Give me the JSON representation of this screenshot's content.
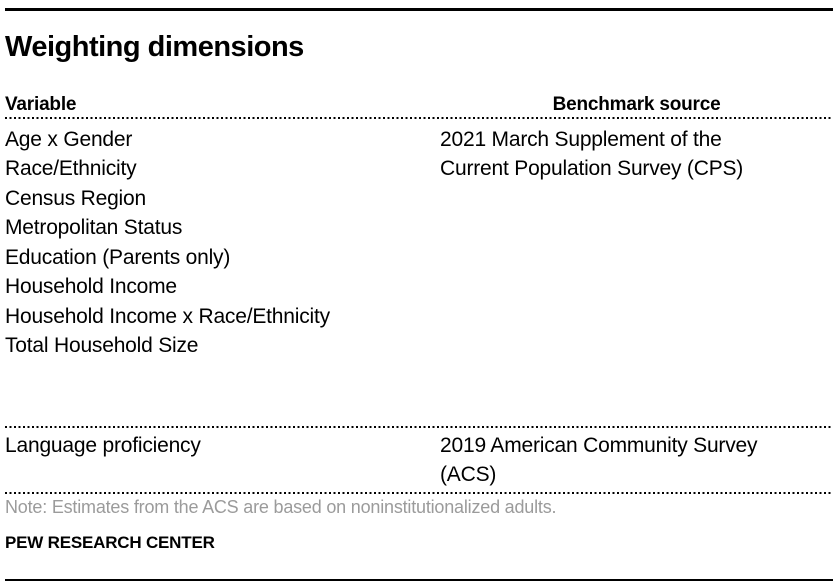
{
  "chart_data": {
    "type": "table",
    "title": "Weighting dimensions",
    "columns": [
      "Variable",
      "Benchmark source"
    ],
    "groups": [
      {
        "variables": [
          "Age x Gender",
          "Race/Ethnicity",
          "Census Region",
          "Metropolitan Status",
          "Education (Parents only)",
          "Household Income",
          "Household Income x Race/Ethnicity",
          "Total Household Size"
        ],
        "benchmark_source": "2021 March Supplement of the Current Population Survey (CPS)"
      },
      {
        "variables": [
          "Language proficiency"
        ],
        "benchmark_source": "2019 American Community Survey (ACS)"
      }
    ],
    "note": "Note: Estimates from the ACS are based on noninstitutionalized adults.",
    "source": "PEW RESEARCH CENTER",
    "layout": {
      "grid": "off",
      "legend": "none"
    }
  },
  "colors": {
    "text": "#000000",
    "note_text": "#9b9b9b",
    "rule": "#000000"
  }
}
